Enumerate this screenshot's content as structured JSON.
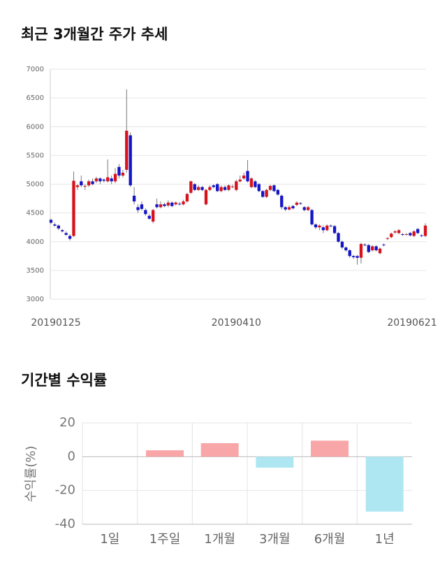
{
  "chart_data": [
    {
      "type": "candlestick",
      "title": "최근 3개월간 주가 추세",
      "categories": [
        "20190125",
        null,
        null,
        null,
        null,
        null,
        null,
        null,
        null,
        null,
        null,
        null,
        null,
        null,
        null,
        null,
        null,
        null,
        null,
        null,
        null,
        null,
        null,
        null,
        null,
        null,
        null,
        null,
        null,
        null,
        null,
        null,
        null,
        null,
        null,
        null,
        null,
        null,
        null,
        null,
        null,
        null,
        null,
        null,
        null,
        null,
        null,
        null,
        null,
        "20190410",
        null,
        null,
        null,
        null,
        null,
        null,
        null,
        null,
        null,
        null,
        null,
        null,
        null,
        null,
        null,
        null,
        null,
        null,
        null,
        null,
        null,
        null,
        null,
        null,
        null,
        null,
        null,
        null,
        null,
        null,
        null,
        null,
        null,
        null,
        null,
        null,
        null,
        null,
        null,
        null,
        null,
        null,
        null,
        null,
        null,
        null,
        null,
        null,
        null,
        "20190621"
      ],
      "open": [
        4380,
        4300,
        4280,
        4200,
        4150,
        4100,
        4100,
        4950,
        5050,
        4960,
        4980,
        5050,
        5050,
        5100,
        5080,
        5050,
        5100,
        5050,
        5300,
        5150,
        5250,
        5850,
        4800,
        4600,
        4650,
        4550,
        4450,
        4350,
        4650,
        4600,
        4650,
        4630,
        4680,
        4650,
        4660,
        4650,
        4700,
        4850,
        5000,
        4900,
        4950,
        4650,
        4900,
        4980,
        5000,
        4880,
        4950,
        4900,
        4950,
        4900,
        5050,
        5100,
        5230,
        4950,
        5050,
        5000,
        4880,
        4780,
        4900,
        4980,
        4900,
        4800,
        4600,
        4560,
        4620,
        4640,
        4670,
        4600,
        4550,
        4550,
        4300,
        4250,
        4250,
        4200,
        4280,
        4270,
        4150,
        4000,
        3900,
        3850,
        3750,
        3750,
        3720,
        3950,
        3940,
        3850,
        3920,
        3800,
        3950,
        4050,
        4080,
        4160,
        4150,
        4130,
        4130,
        4150,
        4100,
        4220,
        4110,
        4100
      ],
      "high": [
        4400,
        4330,
        4300,
        4220,
        4180,
        4130,
        5220,
        5000,
        5150,
        5000,
        5080,
        5100,
        5130,
        5120,
        5100,
        5430,
        5150,
        5280,
        5350,
        5250,
        6650,
        5900,
        4950,
        4650,
        4700,
        4580,
        4480,
        4570,
        4750,
        4700,
        4680,
        4720,
        4700,
        4700,
        4690,
        4730,
        4850,
        5060,
        5020,
        4980,
        4970,
        4920,
        4980,
        5000,
        5020,
        4980,
        4980,
        5000,
        4990,
        5080,
        5150,
        5200,
        5420,
        5120,
        5070,
        5020,
        4900,
        4920,
        4990,
        5000,
        4920,
        4820,
        4620,
        4630,
        4640,
        4700,
        4690,
        4620,
        4620,
        4570,
        4320,
        4300,
        4280,
        4300,
        4300,
        4290,
        4170,
        4020,
        3920,
        3870,
        3770,
        3770,
        3980,
        3970,
        3960,
        3940,
        3940,
        3900,
        3970,
        4080,
        4160,
        4200,
        4220,
        4150,
        4150,
        4170,
        4200,
        4240,
        4130,
        4320
      ],
      "low": [
        4310,
        4260,
        4200,
        4160,
        4100,
        4020,
        4080,
        4900,
        4950,
        4900,
        4950,
        4980,
        5020,
        5000,
        5030,
        5030,
        5000,
        5020,
        5100,
        5120,
        5200,
        4950,
        4650,
        4500,
        4540,
        4450,
        4380,
        4320,
        4580,
        4580,
        4600,
        4600,
        4600,
        4630,
        4630,
        4630,
        4680,
        4830,
        4880,
        4880,
        4880,
        4630,
        4880,
        4930,
        4860,
        4860,
        4880,
        4880,
        4930,
        4880,
        5030,
        5080,
        5030,
        4930,
        4930,
        4860,
        4760,
        4760,
        4880,
        4860,
        4800,
        4560,
        4530,
        4540,
        4560,
        4620,
        4640,
        4530,
        4530,
        4280,
        4220,
        4200,
        4150,
        4180,
        4250,
        4130,
        3980,
        3870,
        3830,
        3720,
        3700,
        3600,
        3620,
        3920,
        3800,
        3830,
        3830,
        3780,
        3920,
        4030,
        4060,
        4140,
        4130,
        4100,
        4110,
        4090,
        4080,
        4130,
        4080,
        4080
      ],
      "close": [
        4330,
        4280,
        4230,
        4180,
        4120,
        4050,
        5060,
        4980,
        4980,
        4970,
        5050,
        5000,
        5100,
        5050,
        5060,
        5120,
        5050,
        5180,
        5150,
        5200,
        5930,
        4980,
        4700,
        4550,
        4570,
        4480,
        4400,
        4550,
        4600,
        4650,
        4620,
        4680,
        4620,
        4680,
        4650,
        4700,
        4830,
        5050,
        4900,
        4950,
        4900,
        4900,
        4950,
        4950,
        4880,
        4950,
        4900,
        4980,
        4960,
        5050,
        5080,
        5150,
        5050,
        5100,
        4950,
        4880,
        4780,
        4900,
        4970,
        4880,
        4820,
        4600,
        4560,
        4600,
        4580,
        4680,
        4660,
        4550,
        4600,
        4300,
        4250,
        4280,
        4200,
        4280,
        4270,
        4150,
        4000,
        3900,
        3850,
        3750,
        3730,
        3720,
        3960,
        3940,
        3820,
        3920,
        3850,
        3880,
        3940,
        4060,
        4140,
        4180,
        4200,
        4120,
        4130,
        4110,
        4180,
        4150,
        4100,
        4280
      ],
      "up_color": "#d8121c",
      "down_color": "#1414c8",
      "ylim": [
        3000,
        7000
      ],
      "yticks": [
        3000,
        3500,
        4000,
        4500,
        5000,
        5500,
        6000,
        6500,
        7000
      ],
      "grid": true
    },
    {
      "type": "bar",
      "title": "기간별 수익률",
      "ylabel": "수익률(%)",
      "categories": [
        "1일",
        "1주일",
        "1개월",
        "3개월",
        "6개월",
        "1년"
      ],
      "values": [
        0,
        3.8,
        8,
        -6.5,
        9.5,
        -32.5
      ],
      "positive_color": "#f9a6a9",
      "negative_color": "#aee7f2",
      "ylim": [
        -40,
        20
      ],
      "yticks": [
        -40,
        -20,
        0,
        20
      ],
      "grid": true
    }
  ]
}
